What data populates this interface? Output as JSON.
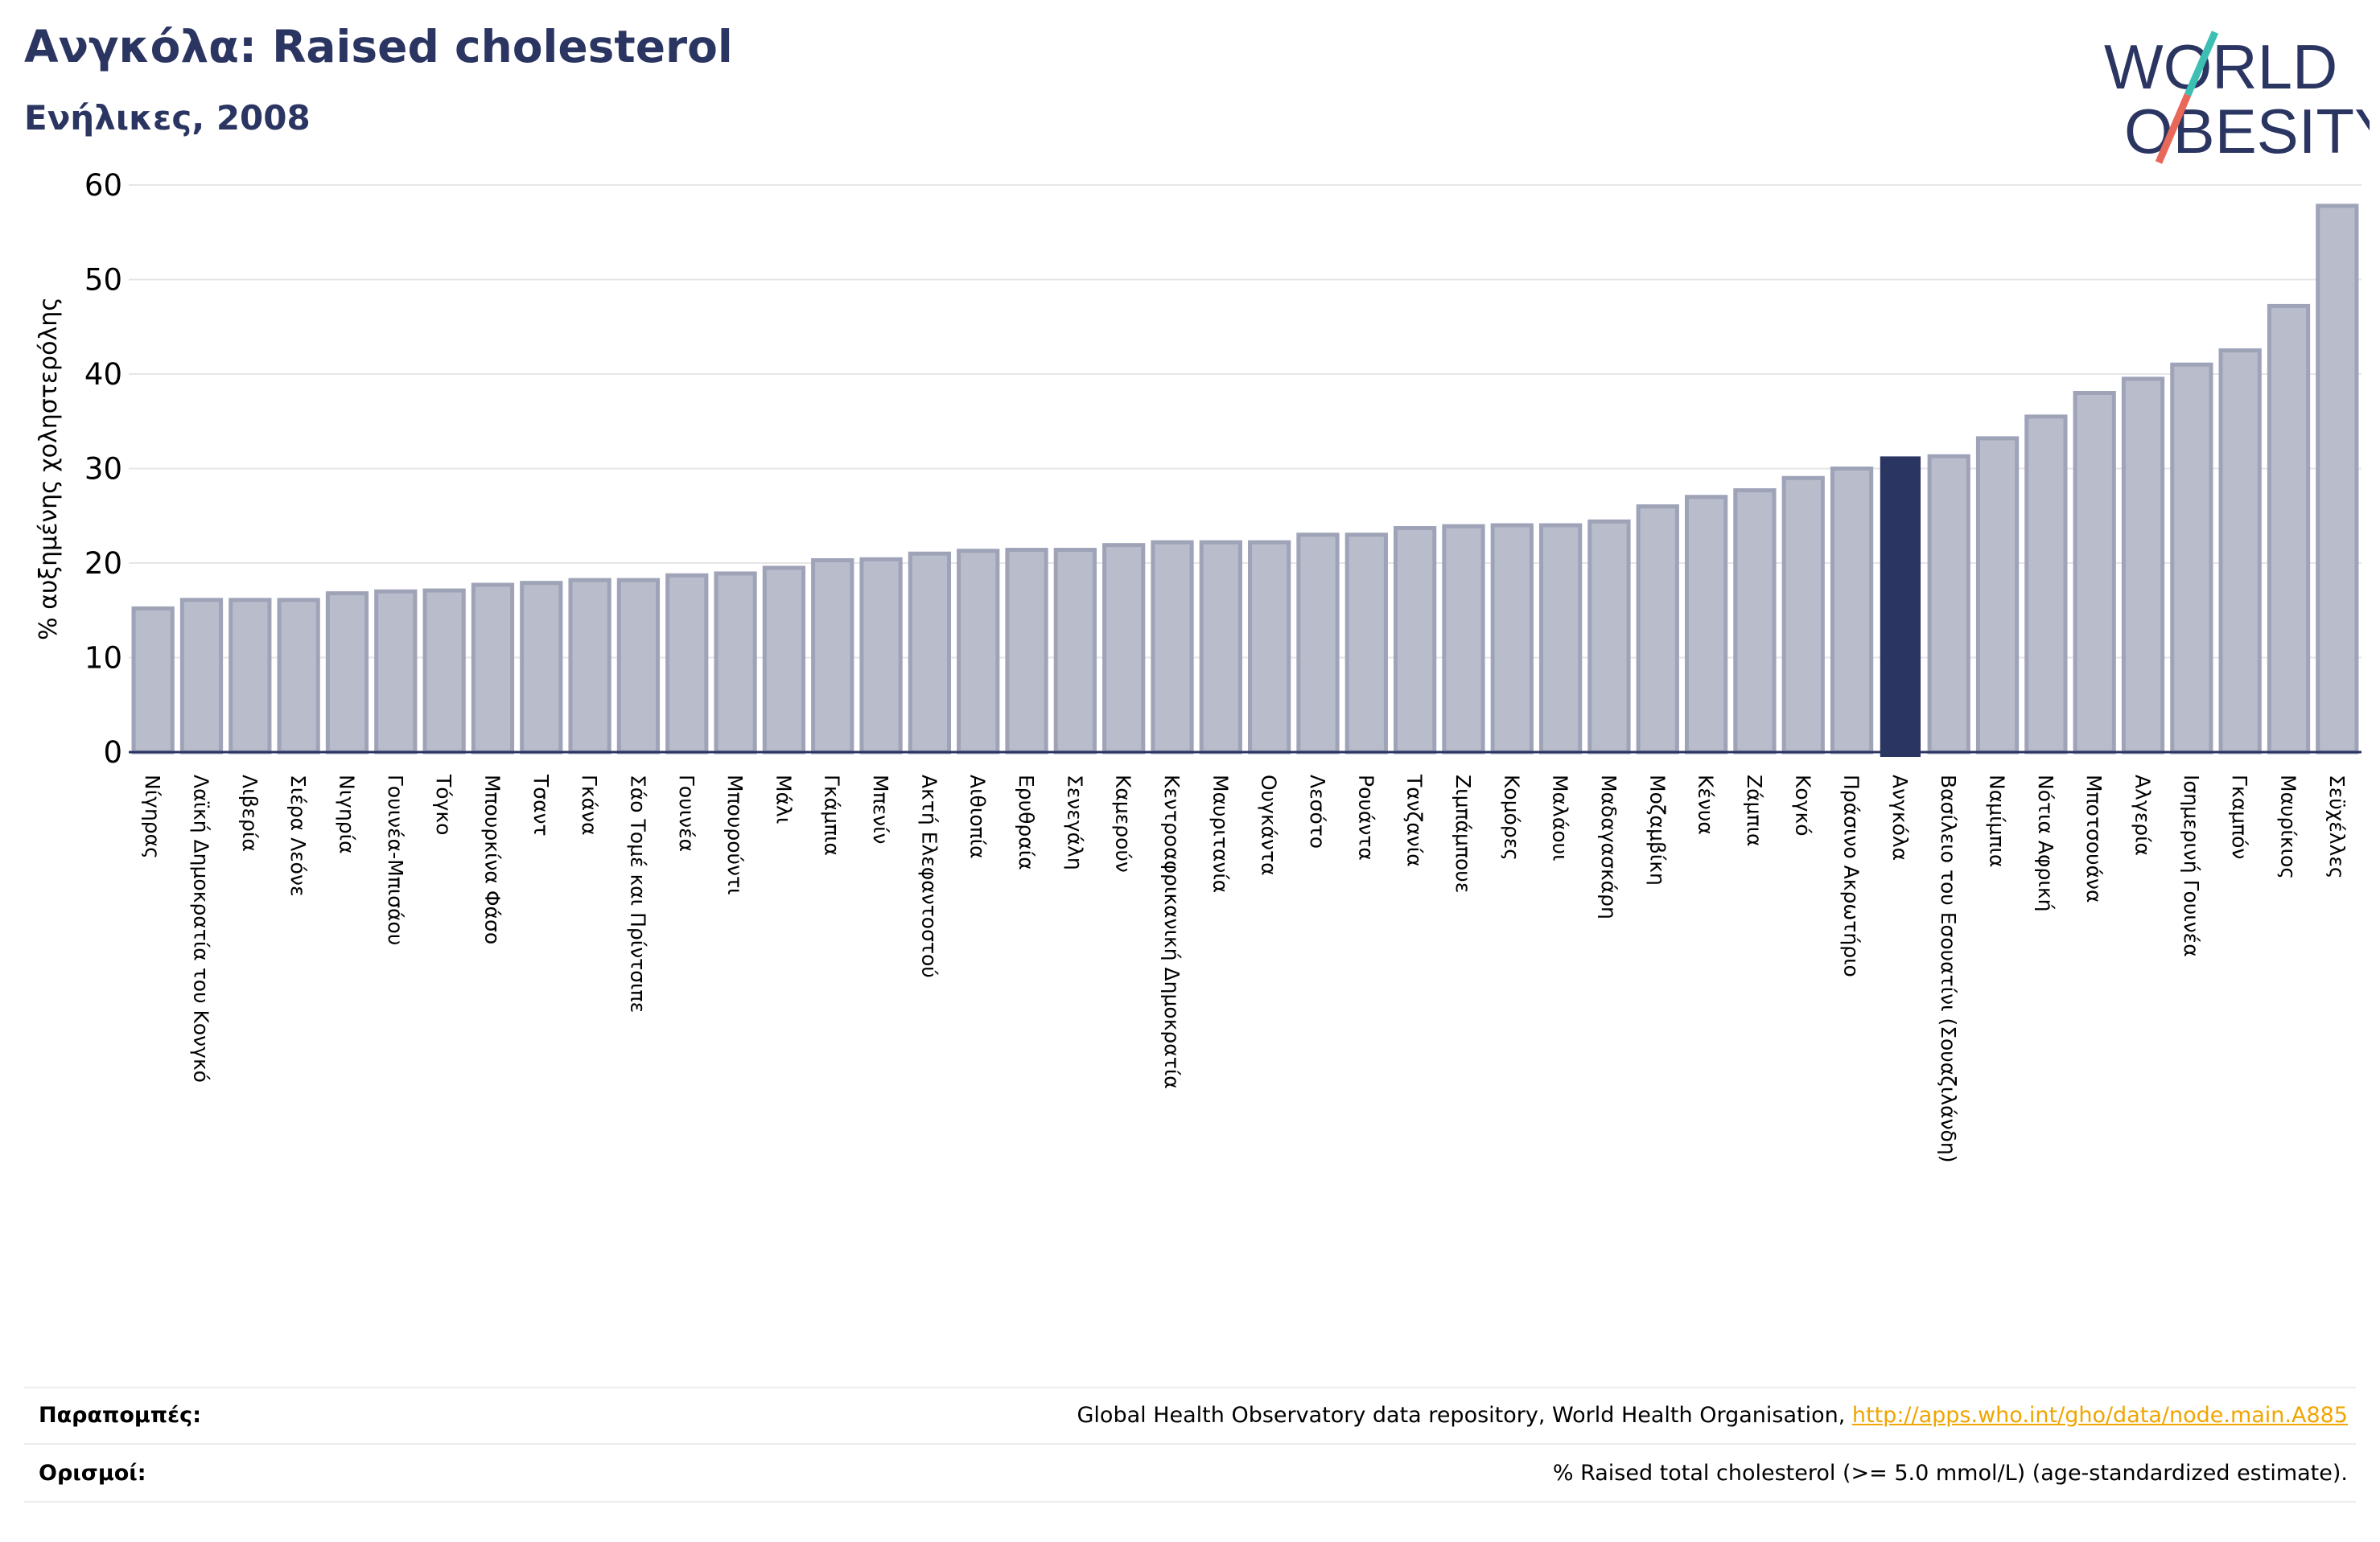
{
  "header": {
    "title": "Ανγκόλα: Raised cholesterol",
    "subtitle": "Ενήλικες, 2008"
  },
  "logo": {
    "line1": "WORLD",
    "line2": "OBESITY",
    "text_color": "#2b3561",
    "slash_color_top": "#3dbfb3",
    "slash_color_bottom": "#e8685a"
  },
  "chart_data": {
    "type": "bar",
    "ylabel": "% αυξημένης χοληστερόλης",
    "ylim": [
      0,
      60
    ],
    "yticks": [
      0,
      10,
      20,
      30,
      40,
      50,
      60
    ],
    "grid": true,
    "bar_color": "#b9bcca",
    "bar_edge_color": "#9ea3b8",
    "highlight_color": "#2b3561",
    "highlight_category": "Ανγκόλα",
    "categories": [
      "Νίγηρας",
      "Λαϊκή Δημοκρατία του Κονγκό",
      "Λιβερία",
      "Σιέρα Λεόνε",
      "Νιγηρία",
      "Γουινέα-Μπισάου",
      "Τόγκο",
      "Μπουρκίνα Φάσο",
      "Τσαντ",
      "Γκάνα",
      "Σάο Τομέ και Πρίντσιπε",
      "Γουινέα",
      "Μπουρούντι",
      "Μάλι",
      "Γκάμπια",
      "Μπενίν",
      "Ακτή Ελεφαντοστού",
      "Αιθιοπία",
      "Ερυθραία",
      "Σενεγάλη",
      "Καμερούν",
      "Κεντροαφρικανική Δημοκρατία",
      "Μαυριτανία",
      "Ουγκάντα",
      "Λεσότο",
      "Ρουάντα",
      "Τανζανία",
      "Ζιμπάμπουε",
      "Κομόρες",
      "Μαλάουι",
      "Μαδαγασκάρη",
      "Μοζαμβίκη",
      "Κένυα",
      "Ζάμπια",
      "Κογκό",
      "Πράσινο Ακρωτήριο",
      "Ανγκόλα",
      "Βασίλειο του Εσουατίνι (Σουαζιλάνδη)",
      "Ναμίμπια",
      "Νότια Αφρική",
      "Μποτσουάνα",
      "Αλγερία",
      "Ισημερινή Γουινέα",
      "Γκαμπόν",
      "Μαυρίκιος",
      "Σεϋχέλλες"
    ],
    "values": [
      15.2,
      16.1,
      16.1,
      16.1,
      16.8,
      17.0,
      17.1,
      17.7,
      17.9,
      18.2,
      18.2,
      18.7,
      18.9,
      19.5,
      20.3,
      20.4,
      21.0,
      21.3,
      21.4,
      21.4,
      21.9,
      22.2,
      22.2,
      22.2,
      23.0,
      23.0,
      23.7,
      23.9,
      24.0,
      24.0,
      24.4,
      26.0,
      27.0,
      27.7,
      29.0,
      30.0,
      31.2,
      31.3,
      33.2,
      35.5,
      38.0,
      39.5,
      41.0,
      42.5,
      47.2,
      57.8
    ]
  },
  "footer": {
    "references_label": "Παραπομπές:",
    "references_text": "Global Health Observatory data repository, World Health Organisation,",
    "references_link": "http://apps.who.int/gho/data/node.main.A885",
    "definitions_label": "Ορισμοί:",
    "definitions_text": "% Raised total cholesterol (>= 5.0 mmol/L) (age-standardized estimate)."
  }
}
